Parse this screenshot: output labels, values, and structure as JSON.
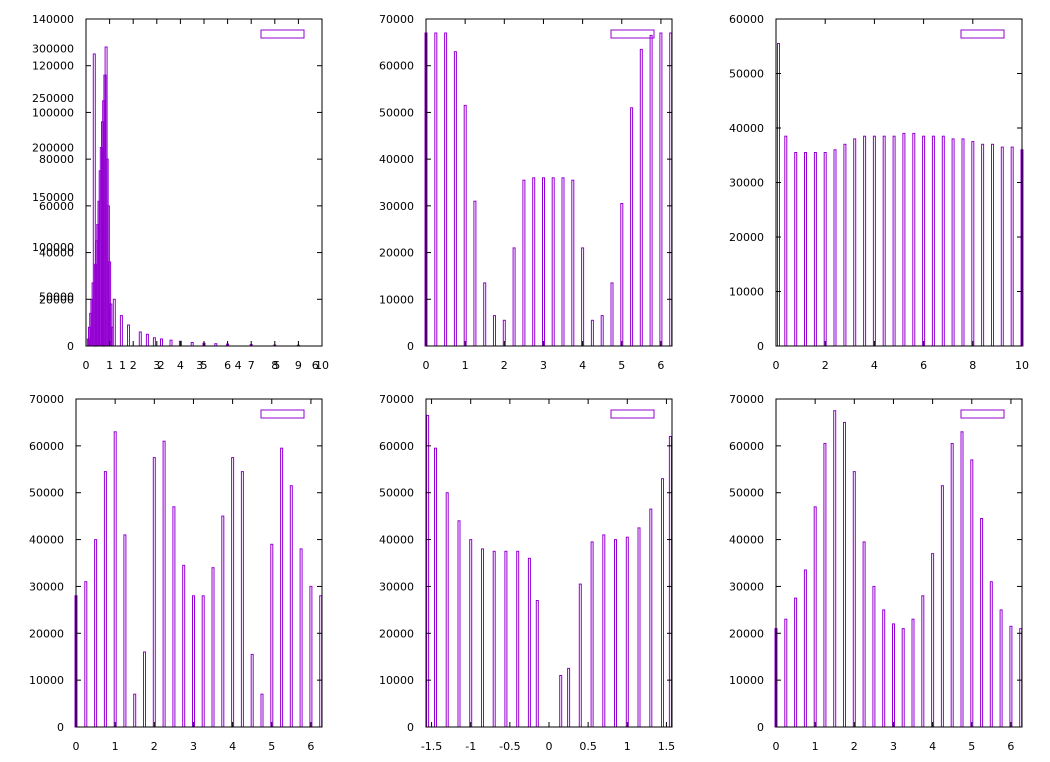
{
  "figure": {
    "rows": 2,
    "cols": 3,
    "series_color": "#9400d3"
  },
  "chart_data": [
    {
      "type": "bar",
      "title": "",
      "legend": {
        "placement": "top-right",
        "label": ""
      },
      "xlim": [
        0,
        10
      ],
      "ylim": [
        0,
        140000
      ],
      "xticks": [
        0,
        1,
        2,
        3,
        4,
        5,
        6,
        7,
        8,
        9,
        10
      ],
      "yticks": [
        0,
        20000,
        40000,
        60000,
        80000,
        100000,
        120000,
        140000
      ],
      "extra_xticks": [
        "1",
        "2",
        "3",
        "4",
        "5",
        "6"
      ],
      "extra_yticks": [
        "50000",
        "100000",
        "150000",
        "200000",
        "250000",
        "300000"
      ],
      "x": [
        0.1,
        0.15,
        0.2,
        0.25,
        0.3,
        0.35,
        0.4,
        0.45,
        0.5,
        0.55,
        0.6,
        0.65,
        0.7,
        0.75,
        0.8,
        0.85,
        0.9,
        0.95,
        1.0,
        1.05,
        1.1,
        1.2,
        1.5,
        1.8,
        2.3,
        2.6,
        2.9,
        3.2,
        3.6,
        4.0,
        4.5,
        5.0,
        5.5,
        6.0,
        7.0,
        8.0,
        9.0
      ],
      "values": [
        3000,
        8000,
        14000,
        20000,
        27000,
        125000,
        35000,
        45000,
        52000,
        62000,
        75000,
        85000,
        96000,
        105000,
        116000,
        128000,
        80000,
        60000,
        36000,
        18000,
        8000,
        20000,
        13000,
        9000,
        6000,
        5000,
        3500,
        3000,
        2500,
        2000,
        1500,
        1200,
        1000,
        800,
        600,
        400,
        300
      ]
    },
    {
      "type": "bar",
      "title": "",
      "legend": {
        "placement": "top-right",
        "label": ""
      },
      "xlim": [
        0,
        6.283
      ],
      "ylim": [
        0,
        70000
      ],
      "xticks": [
        0,
        1,
        2,
        3,
        4,
        5,
        6
      ],
      "yticks": [
        0,
        10000,
        20000,
        30000,
        40000,
        50000,
        60000,
        70000
      ],
      "x": [
        0,
        0.25,
        0.5,
        0.75,
        1.0,
        1.25,
        1.5,
        1.75,
        2.0,
        2.25,
        2.5,
        2.75,
        3.0,
        3.25,
        3.5,
        3.75,
        4.0,
        4.25,
        4.5,
        4.75,
        5.0,
        5.25,
        5.5,
        5.75,
        6.0,
        6.25
      ],
      "values": [
        67000,
        67000,
        67000,
        63000,
        51500,
        31000,
        13500,
        6500,
        5500,
        21000,
        35500,
        36000,
        36000,
        36000,
        36000,
        35500,
        21000,
        5500,
        6500,
        13500,
        30500,
        51000,
        63500,
        66500,
        67000,
        67000
      ]
    },
    {
      "type": "bar",
      "title": "",
      "legend": {
        "placement": "top-right",
        "label": ""
      },
      "xlim": [
        0,
        10
      ],
      "ylim": [
        0,
        60000
      ],
      "xticks": [
        0,
        2,
        4,
        6,
        8,
        10
      ],
      "yticks": [
        0,
        10000,
        20000,
        30000,
        40000,
        50000,
        60000
      ],
      "x": [
        0.1,
        0.4,
        0.8,
        1.2,
        1.6,
        2.0,
        2.4,
        2.8,
        3.2,
        3.6,
        4.0,
        4.4,
        4.8,
        5.2,
        5.6,
        6.0,
        6.4,
        6.8,
        7.2,
        7.6,
        8.0,
        8.4,
        8.8,
        9.2,
        9.6,
        10.0
      ],
      "values": [
        55500,
        38500,
        35500,
        35500,
        35500,
        35500,
        36000,
        37000,
        38000,
        38500,
        38500,
        38500,
        38500,
        39000,
        39000,
        38500,
        38500,
        38500,
        38000,
        38000,
        37500,
        37000,
        37000,
        36500,
        36500,
        36000
      ]
    },
    {
      "type": "bar",
      "title": "",
      "legend": {
        "placement": "top-right",
        "label": ""
      },
      "xlim": [
        0,
        6.283
      ],
      "ylim": [
        0,
        70000
      ],
      "xticks": [
        0,
        1,
        2,
        3,
        4,
        5,
        6
      ],
      "yticks": [
        0,
        10000,
        20000,
        30000,
        40000,
        50000,
        60000,
        70000
      ],
      "x": [
        0.0,
        0.25,
        0.5,
        0.75,
        1.0,
        1.25,
        1.5,
        1.75,
        2.0,
        2.25,
        2.5,
        2.75,
        3.0,
        3.25,
        3.5,
        3.75,
        4.0,
        4.25,
        4.5,
        4.75,
        5.0,
        5.25,
        5.5,
        5.75,
        6.0,
        6.25
      ],
      "values": [
        28000,
        31000,
        40000,
        54500,
        63000,
        41000,
        7000,
        16000,
        57500,
        61000,
        47000,
        34500,
        28000,
        28000,
        34000,
        45000,
        57500,
        54500,
        15500,
        7000,
        39000,
        59500,
        51500,
        38000,
        30000,
        28000
      ]
    },
    {
      "type": "bar",
      "title": "",
      "legend": {
        "placement": "top-right",
        "label": ""
      },
      "xlim": [
        -1.571,
        1.571
      ],
      "ylim": [
        0,
        70000
      ],
      "xticks": [
        -1.5,
        -1,
        -0.5,
        0,
        0.5,
        1,
        1.5
      ],
      "yticks": [
        0,
        10000,
        20000,
        30000,
        40000,
        50000,
        60000,
        70000
      ],
      "x": [
        -1.55,
        -1.45,
        -1.3,
        -1.15,
        -1.0,
        -0.85,
        -0.7,
        -0.55,
        -0.4,
        -0.25,
        -0.15,
        0.15,
        0.25,
        0.4,
        0.55,
        0.7,
        0.85,
        1.0,
        1.15,
        1.3,
        1.45,
        1.55
      ],
      "values": [
        66500,
        59500,
        50000,
        44000,
        40000,
        38000,
        37500,
        37500,
        37500,
        36000,
        27000,
        11000,
        12500,
        30500,
        39500,
        41000,
        40000,
        40500,
        42500,
        46500,
        53000,
        62000
      ]
    },
    {
      "type": "bar",
      "title": "",
      "legend": {
        "placement": "top-right",
        "label": ""
      },
      "xlim": [
        0,
        6.283
      ],
      "ylim": [
        0,
        70000
      ],
      "xticks": [
        0,
        1,
        2,
        3,
        4,
        5,
        6
      ],
      "yticks": [
        0,
        10000,
        20000,
        30000,
        40000,
        50000,
        60000,
        70000
      ],
      "x": [
        0.0,
        0.25,
        0.5,
        0.75,
        1.0,
        1.25,
        1.5,
        1.75,
        2.0,
        2.25,
        2.5,
        2.75,
        3.0,
        3.25,
        3.5,
        3.75,
        4.0,
        4.25,
        4.5,
        4.75,
        5.0,
        5.25,
        5.5,
        5.75,
        6.0,
        6.25
      ],
      "values": [
        21000,
        23000,
        27500,
        33500,
        47000,
        60500,
        67500,
        65000,
        54500,
        39500,
        30000,
        25000,
        22000,
        21000,
        23000,
        28000,
        37000,
        51500,
        60500,
        63000,
        57000,
        44500,
        31000,
        25000,
        21500,
        21000
      ]
    }
  ]
}
